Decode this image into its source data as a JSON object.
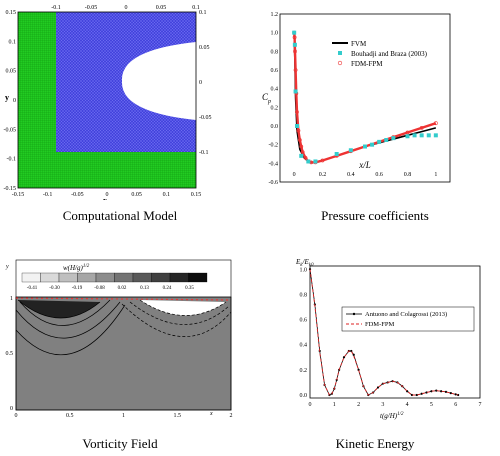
{
  "panels": [
    {
      "caption": "Computational Model",
      "x_ticks": [
        "-0.15",
        "-0.1",
        "-0.05",
        "0",
        "0.05",
        "0.1",
        "0.15"
      ],
      "y_ticks": [
        "0.15",
        "0.1",
        "0.05",
        "0",
        "-0.05",
        "-0.1",
        "-0.15"
      ],
      "inner_x_ticks": [
        "-0.1",
        "-0.05",
        "0",
        "0.05",
        "0.1"
      ],
      "inner_y_ticks": [
        "0.1",
        "0.05",
        "0",
        "-0.05",
        "-0.1"
      ],
      "xlabel": "x",
      "ylabel": "y",
      "colors": {
        "outer_mesh": "#22cc22",
        "inner_mesh": "#4444dd",
        "body": "#ffffff"
      }
    },
    {
      "caption": "Pressure coefficients",
      "ylabel": "C",
      "ylabel_sub": "p",
      "xlabel": "x/L",
      "x_ticks": [
        "0",
        "0.2",
        "0.4",
        "0.6",
        "0.8",
        "1"
      ],
      "y_ticks": [
        "1.2",
        "1.0",
        "0.8",
        "0.6",
        "0.4",
        "0.2",
        "0.0",
        "-0.2",
        "-0.4",
        "-0.6"
      ],
      "legend": [
        {
          "label": "FVM",
          "style": "line",
          "color": "#000000"
        },
        {
          "label": "Bouhadji and Braza (2003)",
          "style": "square",
          "color": "#33cccc"
        },
        {
          "label": "FDM-FPM",
          "style": "circle",
          "color": "#ee3333"
        }
      ]
    },
    {
      "caption": "Vorticity Field",
      "colorbar_title": "w(H/g)",
      "colorbar_title_sup": "1/2",
      "colorbar_ticks": [
        "-0.41",
        "-0.30",
        "-0.19",
        "-0.08",
        "0.02",
        "0.13",
        "0.24",
        "0.35"
      ],
      "x_ticks": [
        "0",
        "0.5",
        "1",
        "1.5",
        "2"
      ],
      "y_ticks": [
        "1",
        "0.5",
        "0"
      ],
      "xlabel": "x",
      "ylabel": "y",
      "colors": {
        "field": "#808080",
        "surface": "#ee3333"
      }
    },
    {
      "caption": "Kinetic Energy",
      "ylabel": "E",
      "ylabel_sub": "k",
      "ylabel_mid": "/E",
      "ylabel_sub2": "k0",
      "xlabel": "t(g/H)",
      "xlabel_sup": "1/2",
      "x_ticks": [
        "0",
        "1",
        "2",
        "3",
        "4",
        "5",
        "6",
        "7"
      ],
      "y_ticks": [
        "1.0",
        "0.8",
        "0.6",
        "0.4",
        "0.2",
        "0.0"
      ],
      "legend": [
        {
          "label": "Antuono and Colagrossi (2013)",
          "style": "line-dot",
          "color": "#000000"
        },
        {
          "label": "FDM-FPM",
          "style": "dashed",
          "color": "#dd2222"
        }
      ]
    }
  ],
  "chart_data": [
    {
      "type": "line",
      "title": "",
      "xlabel": "x/L",
      "ylabel": "Cp",
      "xlim": [
        -0.1,
        1.1
      ],
      "ylim": [
        -0.6,
        1.2
      ],
      "series": [
        {
          "name": "FVM",
          "x": [
            0,
            0.005,
            0.01,
            0.02,
            0.04,
            0.07,
            0.1,
            0.13,
            0.2,
            0.3,
            0.4,
            0.5,
            0.6,
            0.7,
            0.8,
            0.9,
            1.0
          ],
          "y": [
            1.0,
            0.7,
            0.3,
            -0.05,
            -0.25,
            -0.34,
            -0.38,
            -0.39,
            -0.37,
            -0.32,
            -0.27,
            -0.22,
            -0.18,
            -0.14,
            -0.1,
            -0.06,
            -0.02
          ]
        },
        {
          "name": "Bouhadji and Braza (2003)",
          "x": [
            0,
            0.005,
            0.01,
            0.02,
            0.05,
            0.1,
            0.15,
            0.3,
            0.4,
            0.5,
            0.55,
            0.6,
            0.65,
            0.7,
            0.8,
            0.85,
            0.9,
            0.95,
            1.0
          ],
          "y": [
            1.0,
            0.87,
            0.37,
            0.0,
            -0.32,
            -0.38,
            -0.38,
            -0.3,
            -0.26,
            -0.22,
            -0.2,
            -0.17,
            -0.15,
            -0.13,
            -0.11,
            -0.1,
            -0.1,
            -0.1,
            -0.1
          ]
        },
        {
          "name": "FDM-FPM",
          "x": [
            0,
            0.003,
            0.006,
            0.01,
            0.015,
            0.02,
            0.03,
            0.04,
            0.05,
            0.06,
            0.08,
            0.1,
            0.12,
            0.15,
            0.2,
            0.3,
            0.4,
            0.5,
            0.6,
            0.7,
            0.8,
            0.9,
            1.0
          ],
          "y": [
            1.0,
            0.95,
            0.8,
            0.6,
            0.35,
            0.15,
            -0.05,
            -0.15,
            -0.22,
            -0.28,
            -0.34,
            -0.38,
            -0.39,
            -0.39,
            -0.37,
            -0.32,
            -0.27,
            -0.22,
            -0.17,
            -0.12,
            -0.07,
            -0.02,
            0.03
          ]
        }
      ]
    },
    {
      "type": "line",
      "title": "",
      "xlabel": "t(g/H)^1/2",
      "ylabel": "Ek/Ek0",
      "xlim": [
        0,
        7
      ],
      "ylim": [
        0,
        1.05
      ],
      "series": [
        {
          "name": "Antuono and Colagrossi (2013)",
          "x": [
            0,
            0.2,
            0.4,
            0.6,
            0.8,
            0.9,
            1.0,
            1.1,
            1.2,
            1.4,
            1.6,
            1.7,
            1.8,
            2.0,
            2.2,
            2.4,
            2.6,
            2.8,
            3.0,
            3.2,
            3.4,
            3.6,
            3.8,
            4.0,
            4.2,
            4.4,
            4.6,
            4.8,
            5.0,
            5.2,
            5.4,
            5.6,
            5.8,
            6.0,
            6.1
          ],
          "y": [
            1.0,
            0.72,
            0.35,
            0.08,
            0.0,
            0.01,
            0.05,
            0.12,
            0.2,
            0.3,
            0.35,
            0.35,
            0.32,
            0.2,
            0.07,
            0.0,
            0.02,
            0.06,
            0.09,
            0.1,
            0.11,
            0.1,
            0.07,
            0.03,
            0.0,
            0.0,
            0.01,
            0.02,
            0.03,
            0.035,
            0.03,
            0.025,
            0.015,
            0.005,
            0.0
          ]
        },
        {
          "name": "FDM-FPM",
          "x": [
            0,
            0.2,
            0.4,
            0.6,
            0.8,
            0.9,
            1.0,
            1.1,
            1.2,
            1.4,
            1.6,
            1.7,
            1.8,
            2.0,
            2.2,
            2.4,
            2.6,
            2.8,
            3.0,
            3.2,
            3.4,
            3.6,
            3.8,
            4.0,
            4.2,
            4.4,
            4.6,
            4.8,
            5.0,
            5.2,
            5.4,
            5.6,
            5.8,
            6.0,
            6.1
          ],
          "y": [
            1.0,
            0.71,
            0.34,
            0.08,
            0.0,
            0.01,
            0.05,
            0.12,
            0.2,
            0.3,
            0.35,
            0.35,
            0.31,
            0.2,
            0.07,
            0.0,
            0.02,
            0.06,
            0.09,
            0.1,
            0.11,
            0.1,
            0.07,
            0.03,
            0.0,
            0.0,
            0.01,
            0.02,
            0.03,
            0.035,
            0.03,
            0.025,
            0.015,
            0.005,
            0.0
          ]
        }
      ]
    }
  ]
}
